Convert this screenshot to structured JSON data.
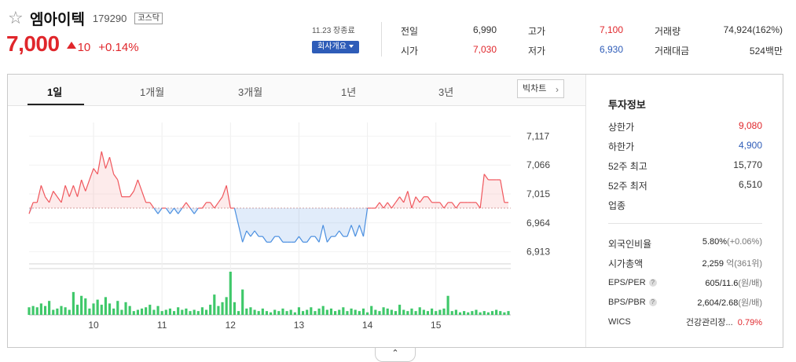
{
  "stock": {
    "name": "엠아이텍",
    "code": "179290",
    "market": "코스닥",
    "price": "7,000",
    "change": "10",
    "change_rate": "+0.14%",
    "close_info": "11.23 장종료",
    "company_button": "회사개요"
  },
  "stats": [
    {
      "label": "전일",
      "value": "6,990",
      "color": "dark"
    },
    {
      "label": "고가",
      "value": "7,100",
      "color": "red"
    },
    {
      "label": "거래량",
      "value": "74,924(162%)",
      "color": "dark"
    },
    {
      "label": "시가",
      "value": "7,030",
      "color": "red"
    },
    {
      "label": "저가",
      "value": "6,930",
      "color": "blue"
    },
    {
      "label": "거래대금",
      "value": "524백만",
      "color": "dark"
    }
  ],
  "tabs": [
    "1일",
    "1개월",
    "3개월",
    "1년",
    "3년"
  ],
  "big_chart_label": "빅차트",
  "side": {
    "title": "투자정보",
    "rows": [
      {
        "label": "상한가",
        "value": "9,080",
        "color": "red"
      },
      {
        "label": "하한가",
        "value": "4,900",
        "color": "blue"
      },
      {
        "label": "52주 최고",
        "value": "15,770",
        "color": "dark"
      },
      {
        "label": "52주 최저",
        "value": "6,510",
        "color": "dark"
      },
      {
        "label": "업종",
        "value": "",
        "color": "dark"
      }
    ],
    "foreign_ratio": {
      "label": "외국인비율",
      "value": "5.80%",
      "sub": "(+0.06%)"
    },
    "market_cap": {
      "label": "시가총액",
      "value": "2,259",
      "sub": "억(361위)"
    },
    "eps_per": {
      "label": "EPS/PER",
      "value": "605/11.6",
      "sub": "(원/배)"
    },
    "bps_pbr": {
      "label": "BPS/PBR",
      "value": "2,604/2.68",
      "sub": "(원/배)"
    },
    "wics": {
      "label": "WICS",
      "value": "건강관리장...",
      "rate": "0.79%"
    }
  },
  "chart_data": {
    "type": "line",
    "title": "",
    "reference_price": 6990,
    "y_ticks": [
      "7,117",
      "7,066",
      "7,015",
      "6,964",
      "6,913"
    ],
    "y_tick_values": [
      7117,
      7066,
      7015,
      6964,
      6913
    ],
    "ylim": [
      6900,
      7130
    ],
    "x_ticks": [
      "10",
      "11",
      "12",
      "13",
      "14",
      "15"
    ],
    "x_tick_index": [
      16,
      33,
      50,
      67,
      84,
      101
    ],
    "series": [
      {
        "values": [
          6980,
          7000,
          7000,
          7030,
          7010,
          7000,
          7020,
          7010,
          7000,
          7030,
          7010,
          7030,
          7010,
          7040,
          7020,
          7040,
          7060,
          7050,
          7090,
          7060,
          7080,
          7050,
          7040,
          7010,
          7010,
          7010,
          7020,
          7040,
          7020,
          7000,
          7000,
          6990,
          6980,
          6990,
          6990,
          6980,
          6990,
          6980,
          6990,
          7000,
          6990,
          6980,
          6990,
          6990,
          7000,
          7000,
          6990,
          7000,
          7010,
          7030,
          6990,
          6990,
          6960,
          6930,
          6950,
          6940,
          6950,
          6940,
          6940,
          6930,
          6930,
          6940,
          6940,
          6930,
          6930,
          6930,
          6930,
          6940,
          6930,
          6930,
          6940,
          6940,
          6930,
          6960,
          6930,
          6940,
          6940,
          6950,
          6940,
          6940,
          6960,
          6940,
          6960,
          6940,
          6990,
          6990,
          6990,
          7000,
          6990,
          7000,
          6990,
          7000,
          7010,
          7000,
          7020,
          6990,
          7010,
          7000,
          7010,
          7010,
          7000,
          7000,
          7000,
          6990,
          7000,
          7000,
          6990,
          7000,
          7000,
          7000,
          7000,
          7000,
          6990,
          7050,
          7040,
          7040,
          7040,
          7040,
          7000,
          7000
        ]
      }
    ],
    "volume": [
      6,
      7,
      6,
      9,
      7,
      11,
      4,
      5,
      7,
      6,
      4,
      18,
      8,
      15,
      13,
      5,
      9,
      12,
      8,
      14,
      9,
      5,
      11,
      4,
      10,
      7,
      3,
      4,
      5,
      6,
      8,
      4,
      7,
      3,
      4,
      5,
      3,
      6,
      4,
      5,
      3,
      4,
      3,
      6,
      4,
      8,
      16,
      7,
      10,
      14,
      34,
      10,
      3,
      20,
      5,
      6,
      4,
      3,
      5,
      3,
      2,
      4,
      3,
      5,
      3,
      4,
      2,
      6,
      3,
      4,
      6,
      3,
      5,
      7,
      4,
      5,
      3,
      4,
      6,
      3,
      5,
      4,
      3,
      5,
      2,
      7,
      4,
      3,
      6,
      5,
      4,
      3,
      8,
      4,
      3,
      5,
      3,
      6,
      4,
      3,
      5,
      3,
      4,
      5,
      15,
      3,
      4,
      2,
      3,
      2,
      3,
      4,
      2,
      3,
      2,
      3,
      4,
      3,
      2,
      3
    ]
  }
}
